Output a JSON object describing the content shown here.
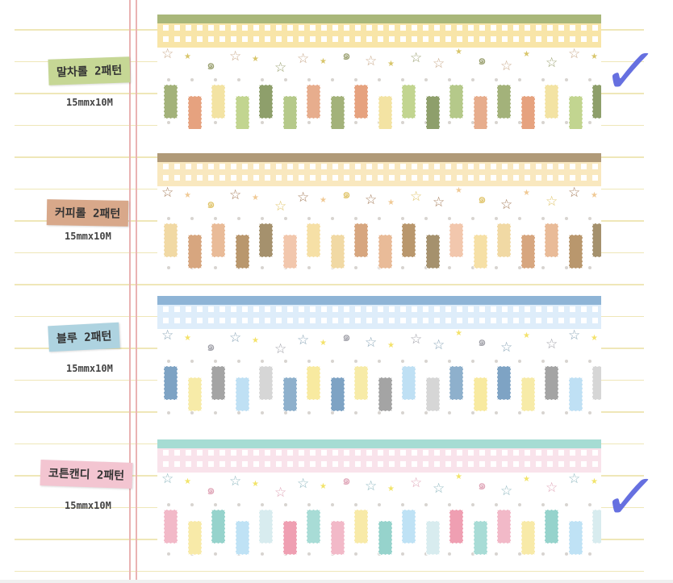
{
  "tapes": [
    {
      "label": "말차롤 2패턴",
      "size": "15mmx10M",
      "label_color": "#c6d795",
      "bar": "#a9b77a",
      "gingham": "#f7e19a",
      "deco": [
        "#c9a98a",
        "#d8c56a",
        "#9aa070"
      ],
      "rect_colors": [
        "#a3b27a",
        "#e6a27f",
        "#f3e3a3",
        "#c2d590",
        "#8e9f6b",
        "#b5c98a",
        "#e7ad8d"
      ],
      "checked": true
    },
    {
      "label": "커피롤 2패턴",
      "size": "15mmx10M",
      "label_color": "#d8a88a",
      "bar": "#b09a78",
      "gingham": "#f8e4b4",
      "deco": [
        "#a47b58",
        "#f0c994",
        "#e0c46a"
      ],
      "rect_colors": [
        "#f1d9a4",
        "#d7a67f",
        "#e9bb98",
        "#b9976d",
        "#a5916d",
        "#f2c7ad",
        "#f6e0a6"
      ],
      "checked": false
    },
    {
      "label": "블루 2패턴",
      "size": "15mmx10M",
      "label_color": "#aed3e0",
      "bar": "#8eb4d6",
      "gingham": "#d9ebfa",
      "deco": [
        "#8aa6b8",
        "#f4e26a",
        "#a0a0a8"
      ],
      "rect_colors": [
        "#7ea3c4",
        "#f7eba8",
        "#a4a4a4",
        "#bfe0f4",
        "#d6d6d6",
        "#8eb0cc",
        "#f8eaa0"
      ],
      "checked": false
    },
    {
      "label": "코튼캔디 2패턴",
      "size": "15mmx10M",
      "label_color": "#f3c5d1",
      "bar": "#a6dcd3",
      "gingham": "#f8dfe8",
      "deco": [
        "#8fb8c0",
        "#f2e46a",
        "#e0a6b8"
      ],
      "rect_colors": [
        "#f2b9c8",
        "#f8eaa8",
        "#96d3cc",
        "#bfe2f5",
        "#d8ecef",
        "#ef9fb2",
        "#a8dcd6"
      ],
      "checked": true
    }
  ],
  "check_mark": "✓"
}
